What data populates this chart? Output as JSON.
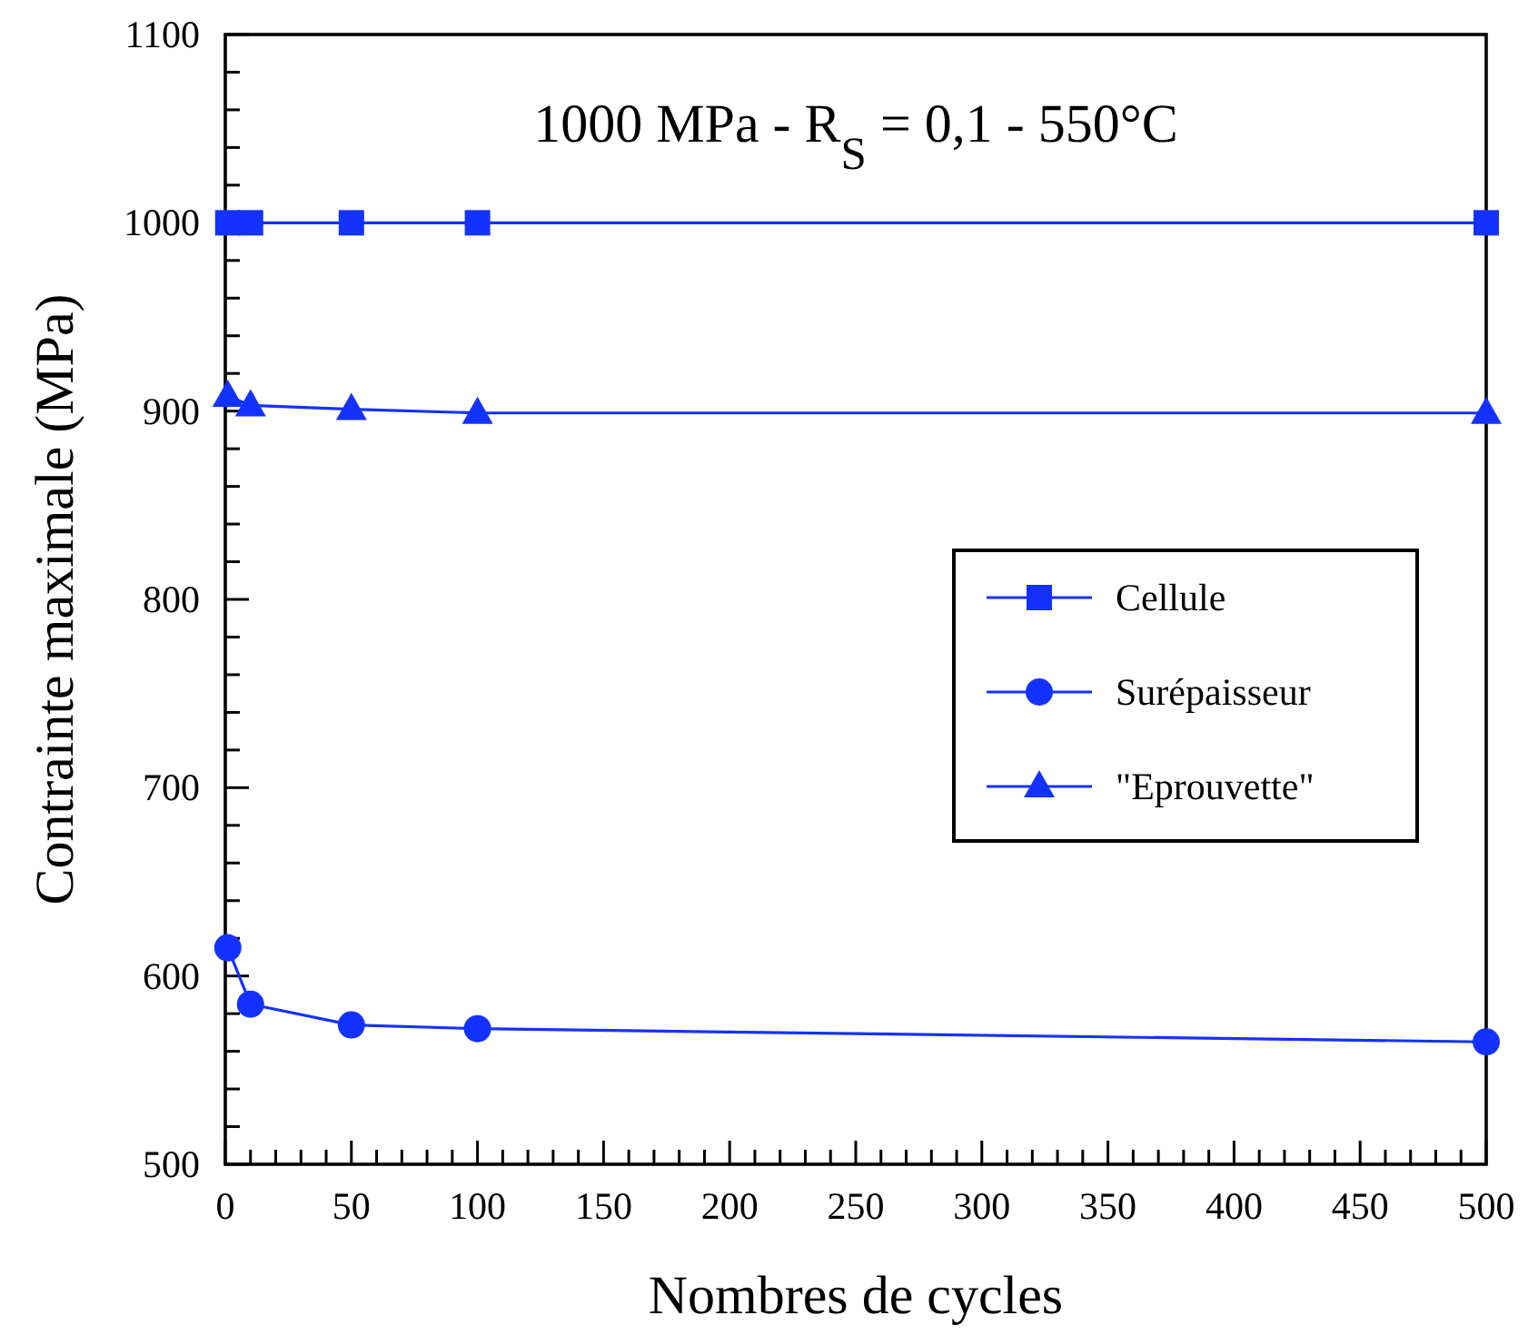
{
  "chart_data": {
    "type": "line",
    "title": "1000 MPa - R$_{S}$ = 0,1 - 550°C",
    "xlabel": "Nombres de cycles",
    "ylabel": "Contrainte maximale (MPa)",
    "x": [
      1,
      10,
      50,
      100,
      500
    ],
    "series": [
      {
        "name": "Cellule",
        "color": "#1432ff",
        "marker": "square",
        "values": [
          1000,
          1000,
          1000,
          1000,
          1000
        ]
      },
      {
        "name": "Surépaisseur",
        "color": "#1432ff",
        "marker": "circle",
        "values": [
          615,
          585,
          574,
          572,
          565
        ]
      },
      {
        "name": "\"Eprouvette\"",
        "color": "#1432ff",
        "marker": "triangle",
        "values": [
          908,
          903,
          901,
          899,
          899
        ]
      }
    ],
    "xlim": [
      0,
      500
    ],
    "ylim": [
      500,
      1100
    ],
    "xticks": [
      0,
      {
        "value": 10,
        "label": null
      },
      {
        "value": 20,
        "label": null
      },
      {
        "value": 30,
        "label": null
      },
      {
        "value": 40,
        "label": null
      },
      50,
      {
        "value": 60,
        "label": null
      },
      {
        "value": 70,
        "label": null
      },
      {
        "value": 80,
        "label": null
      },
      {
        "value": 90,
        "label": null
      },
      100,
      {
        "value": 110,
        "label": null
      },
      {
        "value": 120,
        "label": null
      },
      {
        "value": 130,
        "label": null
      },
      {
        "value": 140,
        "label": null
      },
      150,
      {
        "value": 160,
        "label": null
      },
      {
        "value": 170,
        "label": null
      },
      {
        "value": 180,
        "label": null
      },
      {
        "value": 190,
        "label": null
      },
      200,
      {
        "value": 210,
        "label": null
      },
      {
        "value": 220,
        "label": null
      },
      {
        "value": 230,
        "label": null
      },
      {
        "value": 240,
        "label": null
      },
      250,
      {
        "value": 260,
        "label": null
      },
      {
        "value": 270,
        "label": null
      },
      {
        "value": 280,
        "label": null
      },
      {
        "value": 290,
        "label": null
      },
      300,
      {
        "value": 310,
        "label": null
      },
      {
        "value": 320,
        "label": null
      },
      {
        "value": 330,
        "label": null
      },
      {
        "value": 340,
        "label": null
      },
      350,
      {
        "value": 360,
        "label": null
      },
      {
        "value": 370,
        "label": null
      },
      {
        "value": 380,
        "label": null
      },
      {
        "value": 390,
        "label": null
      },
      400,
      {
        "value": 410,
        "label": null
      },
      {
        "value": 420,
        "label": null
      },
      {
        "value": 430,
        "label": null
      },
      {
        "value": 440,
        "label": null
      },
      450,
      {
        "value": 460,
        "label": null
      },
      {
        "value": 470,
        "label": null
      },
      {
        "value": 480,
        "label": null
      },
      {
        "value": 490,
        "label": null
      },
      500
    ],
    "yticks": [
      500,
      {
        "value": 520,
        "label": null
      },
      {
        "value": 540,
        "label": null
      },
      {
        "value": 560,
        "label": null
      },
      {
        "value": 580,
        "label": null
      },
      600,
      {
        "value": 620,
        "label": null
      },
      {
        "value": 640,
        "label": null
      },
      {
        "value": 660,
        "label": null
      },
      {
        "value": 680,
        "label": null
      },
      700,
      {
        "value": 720,
        "label": null
      },
      {
        "value": 740,
        "label": null
      },
      {
        "value": 760,
        "label": null
      },
      {
        "value": 780,
        "label": null
      },
      800,
      {
        "value": 820,
        "label": null
      },
      {
        "value": 840,
        "label": null
      },
      {
        "value": 860,
        "label": null
      },
      {
        "value": 880,
        "label": null
      },
      900,
      {
        "value": 920,
        "label": null
      },
      {
        "value": 940,
        "label": null
      },
      {
        "value": 960,
        "label": null
      },
      {
        "value": 980,
        "label": null
      },
      1000,
      {
        "value": 1020,
        "label": null
      },
      {
        "value": 1040,
        "label": null
      },
      {
        "value": 1060,
        "label": null
      },
      {
        "value": 1080,
        "label": null
      },
      1100
    ],
    "grid": false,
    "legend": "right",
    "line_style": "solid"
  }
}
